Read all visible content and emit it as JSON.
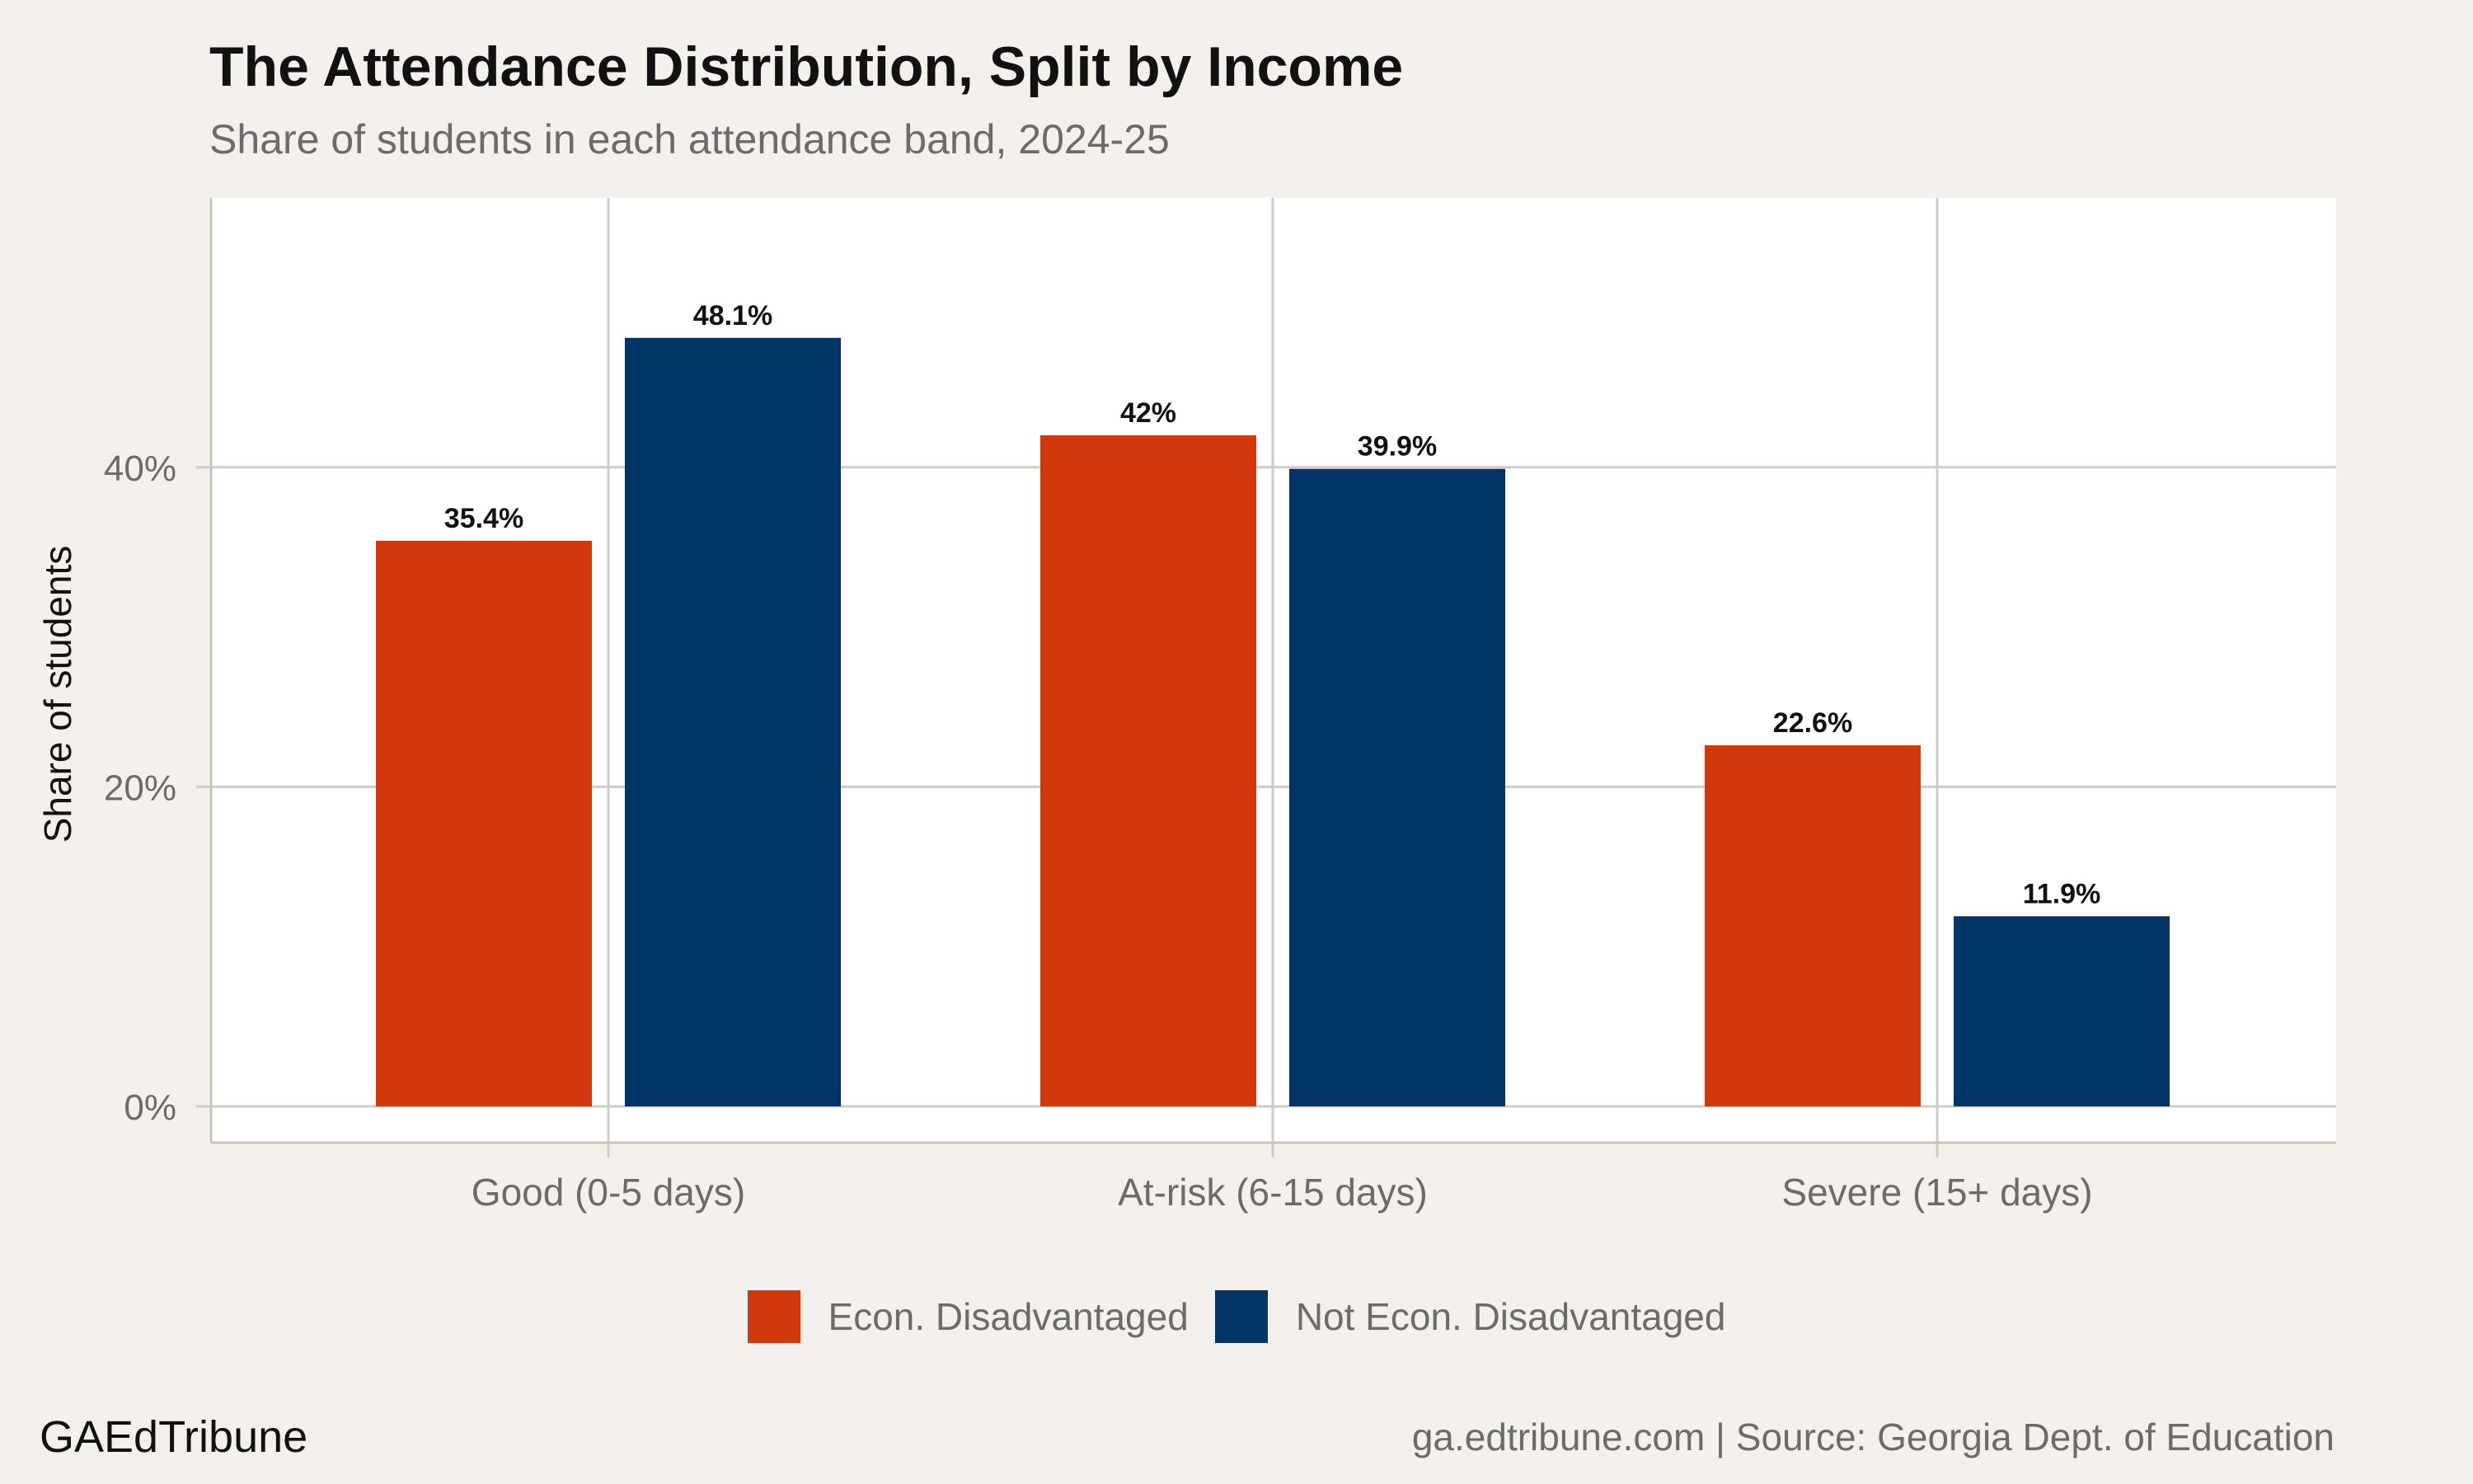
{
  "chart_data": {
    "type": "bar",
    "title": "The Attendance Distribution, Split by Income",
    "subtitle": "Share of students in each attendance band, 2024-25",
    "xlabel": "",
    "ylabel": "Share of students",
    "categories": [
      "Good (0-5 days)",
      "At-risk (6-15 days)",
      "Severe (15+ days)"
    ],
    "series": [
      {
        "name": "Econ. Disadvantaged",
        "color": "#d3380c",
        "values": [
          35.4,
          42,
          22.6
        ],
        "labels": [
          "35.4%",
          "42%",
          "22.6%"
        ]
      },
      {
        "name": "Not Econ. Disadvantaged",
        "color": "#003366",
        "values": [
          48.1,
          39.9,
          11.9
        ],
        "labels": [
          "48.1%",
          "39.9%",
          "11.9%"
        ]
      }
    ],
    "ylim": [
      0,
      55
    ],
    "yticks": [
      0,
      20,
      40
    ],
    "ytick_labels": [
      "0%",
      "20%",
      "40%"
    ],
    "grid": true,
    "legend_position": "bottom"
  },
  "footer": {
    "brand": "GAEdTribune",
    "source": "ga.edtribune.com | Source: Georgia Dept. of Education"
  }
}
